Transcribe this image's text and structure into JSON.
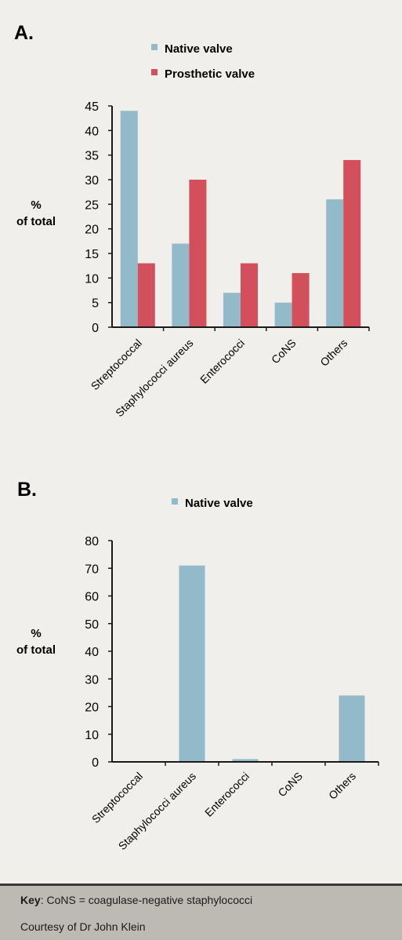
{
  "colors": {
    "native": "#93bac9",
    "prosthetic": "#d24f5b",
    "axis": "#1a1a1a"
  },
  "chart_data": [
    {
      "type": "bar",
      "panel": "A.",
      "categories": [
        "Streptococcal",
        "Staphylococci aureus",
        "Enterococci",
        "CoNS",
        "Others"
      ],
      "series": [
        {
          "name": "Native valve",
          "values": [
            44,
            17,
            7,
            5,
            26
          ]
        },
        {
          "name": "Prosthetic valve",
          "values": [
            13,
            30,
            13,
            11,
            34
          ]
        }
      ],
      "ylabel": [
        "%",
        "of total"
      ],
      "ylim": [
        0,
        45
      ],
      "yticks": [
        0,
        5,
        10,
        15,
        20,
        25,
        30,
        35,
        40,
        45
      ],
      "grid": false,
      "legend": "top"
    },
    {
      "type": "bar",
      "panel": "B.",
      "categories": [
        "Streptococcal",
        "Staphylococci aureus",
        "Enterococci",
        "CoNS",
        "Others"
      ],
      "series": [
        {
          "name": "Native valve",
          "values": [
            0,
            71,
            1,
            0,
            24
          ]
        }
      ],
      "ylabel": [
        "%",
        "of total"
      ],
      "ylim": [
        0,
        80
      ],
      "yticks": [
        0,
        10,
        20,
        30,
        40,
        50,
        60,
        70,
        80
      ],
      "grid": false,
      "legend": "top"
    }
  ],
  "footer": {
    "key_label": "Key",
    "key_text": ": CoNS = coagulase-negative staphylococci",
    "credit": "Courtesy of Dr John Klein"
  }
}
